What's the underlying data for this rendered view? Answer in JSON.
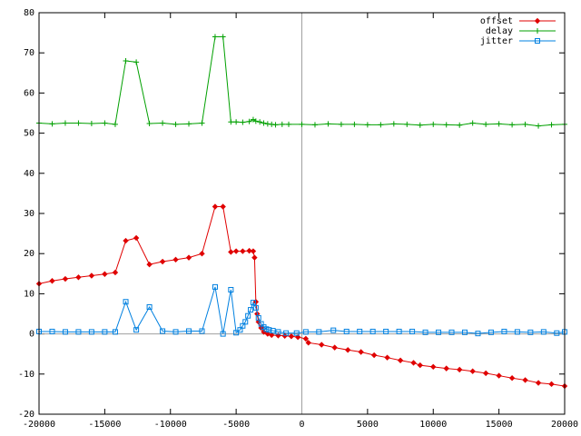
{
  "chart_data": {
    "type": "line",
    "xlim": [
      -20000,
      20000
    ],
    "xticks": [
      -20000,
      -15000,
      -10000,
      -5000,
      0,
      5000,
      10000,
      15000,
      20000
    ],
    "ylim": [
      -20,
      80
    ],
    "yticks": [
      -20,
      -10,
      0,
      10,
      20,
      30,
      40,
      50,
      60,
      70,
      80
    ],
    "zeroaxis": true,
    "legend": "top-right",
    "series": [
      {
        "name": "offset",
        "color": "#e00000",
        "marker": "dot",
        "x": [
          -20000,
          -19000,
          -18000,
          -17000,
          -16000,
          -15000,
          -14200,
          -13400,
          -12600,
          -11600,
          -10600,
          -9600,
          -8600,
          -7600,
          -6600,
          -6000,
          -5400,
          -5000,
          -4500,
          -4000,
          -3700,
          -3600,
          -3500,
          -3400,
          -3300,
          -3100,
          -2900,
          -2600,
          -2300,
          -1800,
          -1300,
          -800,
          -300,
          300,
          500,
          1500,
          2500,
          3500,
          4500,
          5500,
          6500,
          7500,
          8500,
          9000,
          10000,
          11000,
          12000,
          13000,
          14000,
          15000,
          16000,
          17000,
          18000,
          19000,
          20000
        ],
        "values": [
          12.5,
          13.2,
          13.7,
          14.1,
          14.5,
          14.9,
          15.3,
          23.2,
          23.9,
          17.3,
          18.0,
          18.5,
          19.0,
          20.0,
          31.7,
          31.7,
          20.4,
          20.6,
          20.6,
          20.7,
          20.6,
          19,
          8,
          5,
          3,
          1.5,
          0.5,
          0,
          -0.3,
          -0.4,
          -0.5,
          -0.6,
          -0.8,
          -1.2,
          -2.2,
          -2.7,
          -3.4,
          -4.0,
          -4.5,
          -5.3,
          -5.9,
          -6.6,
          -7.2,
          -7.8,
          -8.2,
          -8.6,
          -8.9,
          -9.3,
          -9.8,
          -10.4,
          -11.0,
          -11.5,
          -12.2,
          -12.5,
          -13.0
        ]
      },
      {
        "name": "delay",
        "color": "#00a000",
        "marker": "plus",
        "x": [
          -20000,
          -19000,
          -18000,
          -17000,
          -16000,
          -15000,
          -14200,
          -13400,
          -12600,
          -11600,
          -10600,
          -9600,
          -8600,
          -7600,
          -6600,
          -6000,
          -5400,
          -5000,
          -4500,
          -4000,
          -3700,
          -3500,
          -3200,
          -2900,
          -2600,
          -2300,
          -2000,
          -1500,
          -1000,
          0,
          1000,
          2000,
          3000,
          4000,
          5000,
          6000,
          7000,
          8000,
          9000,
          10000,
          11000,
          12000,
          13000,
          14000,
          15000,
          16000,
          17000,
          18000,
          19000,
          20000
        ],
        "values": [
          52.5,
          52.3,
          52.5,
          52.5,
          52.4,
          52.5,
          52.2,
          68.0,
          67.7,
          52.4,
          52.5,
          52.2,
          52.3,
          52.5,
          74.0,
          74.0,
          52.8,
          52.8,
          52.7,
          52.9,
          53.4,
          53.0,
          52.8,
          52.5,
          52.3,
          52.2,
          52.1,
          52.2,
          52.2,
          52.2,
          52.1,
          52.3,
          52.2,
          52.2,
          52.1,
          52.1,
          52.3,
          52.2,
          52.0,
          52.2,
          52.1,
          52.0,
          52.5,
          52.2,
          52.3,
          52.1,
          52.2,
          51.8,
          52.1,
          52.2
        ]
      },
      {
        "name": "jitter",
        "color": "#0080e0",
        "marker": "square",
        "x": [
          -20000,
          -19000,
          -18000,
          -17000,
          -16000,
          -15000,
          -14200,
          -13400,
          -12600,
          -11600,
          -10600,
          -9600,
          -8600,
          -7600,
          -6600,
          -6000,
          -5400,
          -5000,
          -4700,
          -4500,
          -4300,
          -4100,
          -3900,
          -3700,
          -3500,
          -3300,
          -3100,
          -2900,
          -2700,
          -2500,
          -2200,
          -1800,
          -1200,
          -400,
          300,
          1300,
          2400,
          3400,
          4400,
          5400,
          6400,
          7400,
          8400,
          9400,
          10400,
          11400,
          12400,
          13400,
          14400,
          15400,
          16400,
          17400,
          18400,
          19400,
          20000
        ],
        "values": [
          0.6,
          0.6,
          0.5,
          0.5,
          0.5,
          0.5,
          0.5,
          8.0,
          1.0,
          6.7,
          0.7,
          0.5,
          0.7,
          0.7,
          11.7,
          0.0,
          11.0,
          0.3,
          1,
          2,
          3,
          4.5,
          6,
          7.8,
          6.5,
          4,
          2.5,
          1.7,
          1.2,
          1.0,
          0.8,
          0.5,
          0.2,
          0.2,
          0.5,
          0.5,
          0.9,
          0.6,
          0.6,
          0.6,
          0.6,
          0.6,
          0.6,
          0.4,
          0.4,
          0.4,
          0.4,
          0.1,
          0.4,
          0.6,
          0.5,
          0.4,
          0.5,
          0.2,
          0.5
        ]
      }
    ]
  }
}
